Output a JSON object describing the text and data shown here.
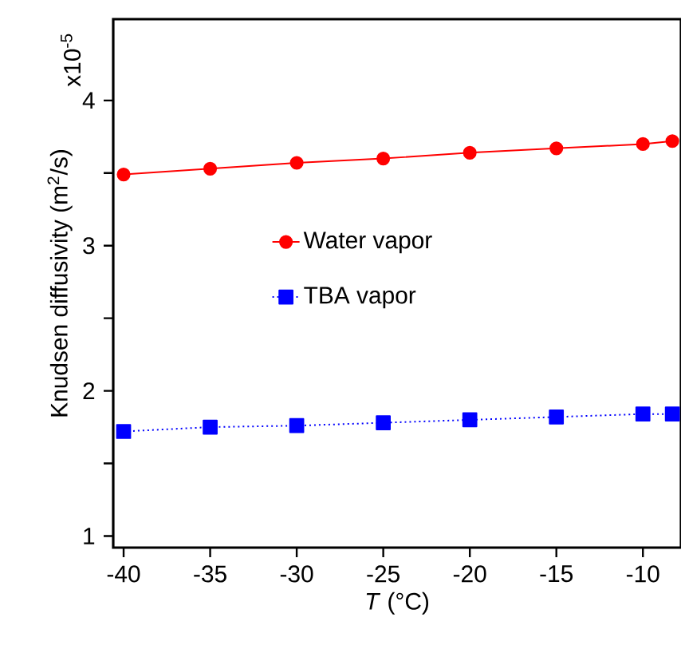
{
  "chart_data": {
    "type": "line",
    "xlabel": "*T* (°C)",
    "ylabel": "Knudsen diffusivity (m$^{2}$/s)",
    "annotations": [
      "x10$^{-5}$"
    ],
    "x": [
      -40,
      -35,
      -30,
      -25,
      -20,
      -15,
      -10,
      -8.3
    ],
    "series": [
      {
        "name": "Water vapor",
        "color": "#ff0000",
        "marker": "circle",
        "line_style": "solid",
        "values": [
          3.49,
          3.53,
          3.57,
          3.6,
          3.64,
          3.67,
          3.7,
          3.72
        ]
      },
      {
        "name": "TBA vapor",
        "color": "#0000ff",
        "marker": "square",
        "line_style": "dotted",
        "values": [
          1.72,
          1.75,
          1.76,
          1.78,
          1.8,
          1.82,
          1.84,
          1.84
        ]
      }
    ],
    "xlim": [
      -40.6,
      -7.8
    ],
    "ylim": [
      0.92,
      4.56
    ],
    "xticks": [
      -40,
      -35,
      -30,
      -25,
      -20,
      -15,
      -10
    ],
    "yticks": [
      1,
      {
        "value": 1.5,
        "label": null
      },
      2,
      {
        "value": 2.5,
        "label": null
      },
      3,
      {
        "value": 3.5,
        "label": null
      },
      4
    ],
    "grid": false,
    "legend": "center"
  }
}
